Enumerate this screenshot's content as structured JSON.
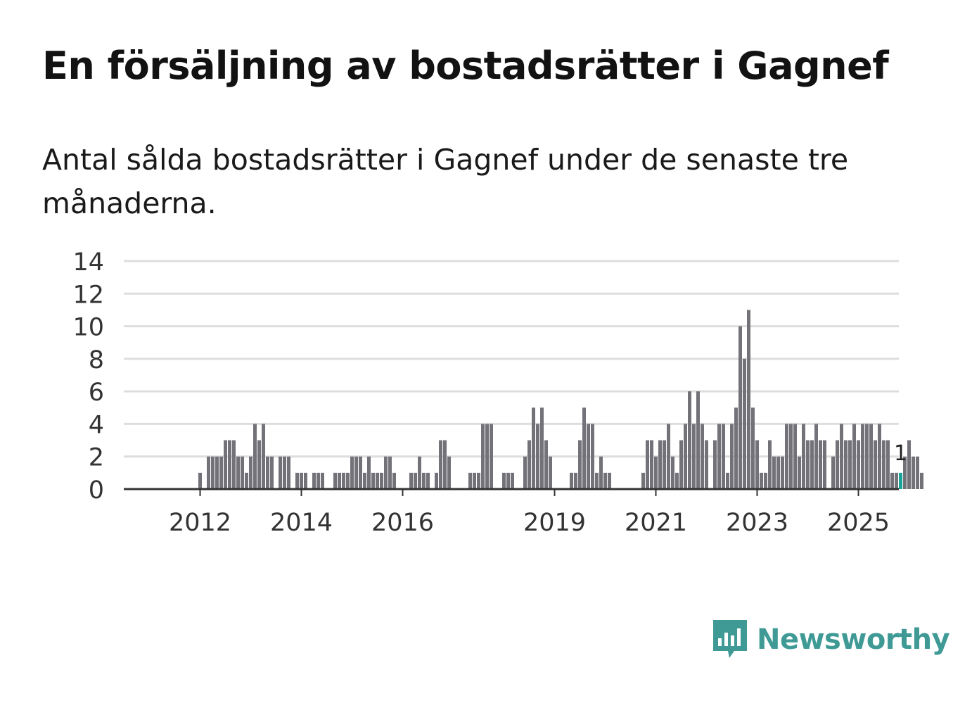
{
  "header": {
    "title": "En försäljning av bostadsrätter i Gagnef",
    "subtitle": "Antal sålda bostadsrätter i Gagnef under de senaste tre månaderna."
  },
  "colors": {
    "bar": "#737278",
    "highlight": "#1aa39a",
    "grid": "#dedede",
    "axis": "#333333",
    "brand": "#3f9a96"
  },
  "chart_data": {
    "type": "bar",
    "title": "En försäljning av bostadsrätter i Gagnef",
    "xlabel": "",
    "ylabel": "",
    "ylim": [
      0,
      14
    ],
    "yticks": [
      "0",
      "2",
      "4",
      "6",
      "8",
      "10",
      "12",
      "14"
    ],
    "xticks": [
      {
        "label": "2012",
        "index": 9
      },
      {
        "label": "2014",
        "index": 33
      },
      {
        "label": "2016",
        "index": 57
      },
      {
        "label": "2019",
        "index": 93
      },
      {
        "label": "2021",
        "index": 117
      },
      {
        "label": "2023",
        "index": 141
      },
      {
        "label": "2025",
        "index": 165
      }
    ],
    "values": [
      0,
      0,
      0,
      0,
      0,
      0,
      0,
      0,
      0,
      1,
      0,
      2,
      2,
      2,
      2,
      3,
      3,
      3,
      2,
      2,
      1,
      2,
      4,
      3,
      4,
      2,
      2,
      0,
      2,
      2,
      2,
      0,
      1,
      1,
      1,
      0,
      1,
      1,
      1,
      0,
      0,
      1,
      1,
      1,
      1,
      2,
      2,
      2,
      1,
      2,
      1,
      1,
      1,
      2,
      2,
      1,
      0,
      0,
      0,
      1,
      1,
      2,
      1,
      1,
      0,
      1,
      3,
      3,
      2,
      0,
      0,
      0,
      0,
      1,
      1,
      1,
      4,
      4,
      4,
      0,
      0,
      1,
      1,
      1,
      0,
      0,
      2,
      3,
      5,
      4,
      5,
      3,
      2,
      0,
      0,
      0,
      0,
      1,
      1,
      3,
      5,
      4,
      4,
      1,
      2,
      1,
      1,
      0,
      0,
      0,
      0,
      0,
      0,
      0,
      1,
      3,
      3,
      2,
      3,
      3,
      4,
      2,
      1,
      3,
      4,
      6,
      4,
      6,
      4,
      3,
      0,
      3,
      4,
      4,
      1,
      4,
      5,
      10,
      8,
      11,
      5,
      3,
      1,
      1,
      3,
      2,
      2,
      2,
      4,
      4,
      4,
      2,
      4,
      3,
      3,
      4,
      3,
      3,
      0,
      2,
      3,
      4,
      3,
      3,
      4,
      3,
      4,
      4,
      4,
      3,
      4,
      3,
      3,
      1,
      1,
      1,
      2,
      3,
      2,
      2,
      1
    ],
    "highlight_index": 175,
    "annotation": "1"
  },
  "brand": {
    "name": "Newsworthy",
    "icon": "bar-chart-speech-icon"
  }
}
